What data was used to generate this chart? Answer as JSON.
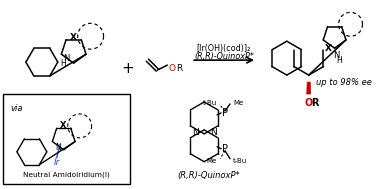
{
  "background": "#ffffff",
  "figsize": [
    3.78,
    1.89
  ],
  "dpi": 100,
  "arrow_label_line1": "[Ir(OH)(cod)]₂",
  "arrow_label_line2": "(R,R)-QuinoxP*",
  "product_ee": "up to 98% ee",
  "via_label": "via",
  "intermediate_label": "Neutral Amidoiridium(I)",
  "catalyst_label": "(R,R)-QuinoxP*",
  "black": "#000000",
  "red": "#cc0000",
  "blue": "#2255cc",
  "lw": 1.1
}
